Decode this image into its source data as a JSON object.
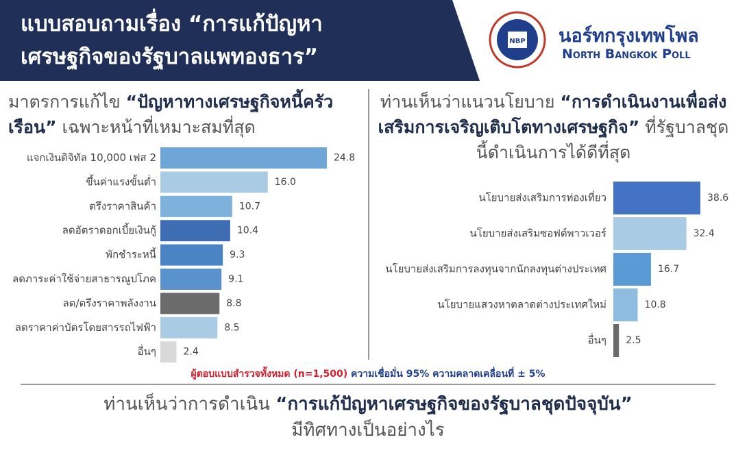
{
  "header": {
    "title_lines": [
      "แบบสอบถามเรื่อง “การแก้ปัญหา",
      "เศรษฐกิจของรัฐบาลแพทองธาร”"
    ],
    "brand": "นอร์ทกรุงเทพโพล",
    "brand_en": "North Bangkok Poll"
  },
  "chart_data": [
    {
      "type": "bar",
      "orientation": "horizontal",
      "title": {
        "lead": "มาตรการแก้ไข",
        "emphasis": "“ปัญหาทางเศรษฐกิจหนี้ครัวเรือน”",
        "tail": "เฉพาะหน้าที่เหมาะสมที่สุด"
      },
      "categories": [
        "แจกเงินดิจิทัล 10,000 เฟส 2",
        "ขึ้นค่าแรงขั้นต่ำ",
        "ตรึงราคาสินค้า",
        "ลดอัตราดอกเบี้ยเงินกู้",
        "พักชำระหนี้",
        "ลดภาระค่าใช้จ่ายสาธารณูปโภค",
        "ลด/ตรึงราคาพลังงาน",
        "ลดราคาค่าบัตรโดยสารรถไฟฟ้า",
        "อื่นๆ"
      ],
      "values": [
        24.8,
        16.0,
        10.7,
        10.4,
        9.3,
        9.1,
        8.8,
        8.5,
        2.4
      ],
      "value_labels": [
        "24.8",
        "16.0",
        "10.7",
        "10.4",
        "9.3",
        "9.1",
        "8.8",
        "8.5",
        "2.4"
      ],
      "colors": [
        "#6ea6d8",
        "#a9cbe4",
        "#7fb1dd",
        "#3f6db3",
        "#4b84c5",
        "#5a92cd",
        "#6b6b6b",
        "#a9cbe4",
        "#d9d9d9"
      ]
    },
    {
      "type": "bar",
      "orientation": "horizontal",
      "title": {
        "lead": "ท่านเห็นว่าแนวนโยบาย",
        "emphasis": "“การดำเนินงานเพื่อส่งเสริมการเจริญเติบโตทางเศรษฐกิจ”",
        "tail": "ที่รัฐบาลชุดนี้ดำเนินการได้ดีที่สุด"
      },
      "categories": [
        "นโยบายส่งเสริมการท่องเที่ยว",
        "นโยบายส่งเสริมซอฟต์พาวเวอร์",
        "นโยบายส่งเสริมการลงทุนจากนักลงทุนต่างประเทศ",
        "นโยบายแสวงหาตลาดต่างประเทศใหม่",
        "อื่นๆ"
      ],
      "values": [
        38.6,
        32.4,
        16.7,
        10.8,
        2.5
      ],
      "colors": [
        "#4472c4",
        "#a9cbe4",
        "#5b9bd5",
        "#8fbde2",
        "#6b6b6b"
      ]
    }
  ],
  "footnote": {
    "sample": "ผู้ตอบแบบสำรวจทั้งหมด (n=1,500)",
    "confidence": "ความเชื่อมั่น 95% ความคลาดเคลื่อนที่ ± 5%"
  },
  "question": {
    "lead": "ท่านเห็นว่าการดำเนิน",
    "emphasis": "“การแก้ปัญหาเศรษฐกิจของรัฐบาลชุดปัจจุบัน”",
    "tail": "มีทิศทางเป็นอย่างไร"
  }
}
